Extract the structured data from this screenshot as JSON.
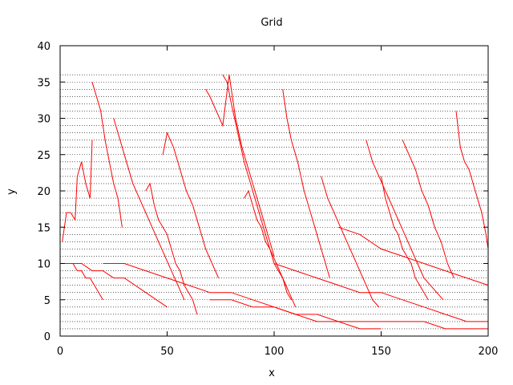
{
  "chart_data": {
    "type": "line",
    "title": "Grid",
    "xlabel": "x",
    "ylabel": "y",
    "xlim": [
      0,
      200
    ],
    "ylim": [
      0,
      40
    ],
    "x_ticks": [
      0,
      50,
      100,
      150,
      200
    ],
    "y_ticks": [
      0,
      5,
      10,
      15,
      20,
      25,
      30,
      35,
      40
    ],
    "grid": "horizontal dotted lines at every integer y from 1 to 36",
    "grid_y": [
      1,
      2,
      3,
      4,
      5,
      6,
      7,
      8,
      9,
      10,
      11,
      12,
      13,
      14,
      15,
      16,
      17,
      18,
      19,
      20,
      21,
      22,
      23,
      24,
      25,
      26,
      27,
      28,
      29,
      30,
      31,
      32,
      33,
      34,
      35,
      36
    ],
    "line_color": "#ff0000",
    "series": [
      {
        "x": [
          0,
          2,
          4,
          6,
          8,
          10,
          12,
          14,
          16,
          18,
          20
        ],
        "y": [
          10,
          10,
          10,
          10,
          9,
          9,
          8,
          8,
          7,
          6,
          5
        ]
      },
      {
        "x": [
          1,
          3,
          5,
          7,
          8,
          10,
          12,
          14,
          15
        ],
        "y": [
          13,
          17,
          17,
          16,
          22,
          24,
          21,
          19,
          27
        ]
      },
      {
        "x": [
          15,
          17,
          19,
          21,
          23,
          25,
          27,
          29
        ],
        "y": [
          35,
          33,
          31,
          27,
          24,
          21,
          19,
          15
        ]
      },
      {
        "x": [
          25,
          28,
          31,
          34,
          37,
          40,
          43,
          46,
          49,
          52,
          55,
          58
        ],
        "y": [
          30,
          27,
          24,
          21,
          19,
          17,
          15,
          13,
          11,
          9,
          7,
          5
        ]
      },
      {
        "x": [
          48,
          50,
          53,
          56,
          59,
          62,
          65,
          68,
          71,
          74
        ],
        "y": [
          25,
          28,
          26,
          23,
          20,
          18,
          15,
          12,
          10,
          8
        ]
      },
      {
        "x": [
          68,
          70,
          73,
          76,
          79,
          82,
          85,
          88,
          91,
          94,
          97,
          100
        ],
        "y": [
          34,
          33,
          31,
          29,
          36,
          30,
          26,
          23,
          20,
          17,
          14,
          11
        ]
      },
      {
        "x": [
          76,
          78,
          80,
          83,
          86,
          89,
          92,
          95,
          98,
          101,
          104,
          107,
          110
        ],
        "y": [
          36,
          35,
          32,
          28,
          24,
          21,
          18,
          15,
          12,
          10,
          8,
          6,
          4
        ]
      },
      {
        "x": [
          104,
          106,
          108,
          111,
          114,
          117,
          120,
          123,
          126
        ],
        "y": [
          34,
          30,
          27,
          24,
          20,
          17,
          14,
          11,
          8
        ]
      },
      {
        "x": [
          122,
          125,
          128,
          131,
          134,
          137,
          140,
          143,
          146,
          149
        ],
        "y": [
          22,
          19,
          17,
          15,
          13,
          11,
          9,
          7,
          5,
          4
        ]
      },
      {
        "x": [
          143,
          146,
          149,
          152,
          155,
          158,
          161,
          164,
          167,
          170,
          173,
          176,
          179
        ],
        "y": [
          27,
          24,
          22,
          20,
          18,
          16,
          14,
          12,
          10,
          8,
          7,
          6,
          5
        ]
      },
      {
        "x": [
          160,
          163,
          166,
          169,
          172,
          175,
          178,
          181,
          184
        ],
        "y": [
          27,
          25,
          23,
          20,
          18,
          15,
          13,
          10,
          8
        ]
      },
      {
        "x": [
          185,
          187,
          189,
          191,
          193,
          195,
          197,
          199,
          200
        ],
        "y": [
          31,
          26,
          24,
          23,
          21,
          19,
          17,
          14,
          12
        ]
      },
      {
        "x": [
          5,
          10,
          15,
          20,
          25,
          30,
          35,
          40,
          45,
          50
        ],
        "y": [
          10,
          10,
          9,
          9,
          8,
          8,
          7,
          6,
          5,
          4
        ]
      },
      {
        "x": [
          20,
          30,
          40,
          50,
          60,
          70,
          80,
          90,
          100,
          110,
          120,
          130,
          140,
          150
        ],
        "y": [
          10,
          10,
          9,
          8,
          7,
          6,
          6,
          5,
          4,
          3,
          2,
          2,
          1,
          1
        ]
      },
      {
        "x": [
          70,
          80,
          90,
          100,
          110,
          120,
          130,
          140,
          150,
          160,
          170,
          180,
          190,
          200
        ],
        "y": [
          5,
          5,
          4,
          4,
          3,
          3,
          2,
          2,
          2,
          2,
          2,
          1,
          1,
          1
        ]
      },
      {
        "x": [
          100,
          110,
          120,
          130,
          140,
          150,
          160,
          170,
          180,
          190,
          200
        ],
        "y": [
          10,
          9,
          8,
          7,
          6,
          6,
          5,
          4,
          3,
          2,
          2
        ]
      },
      {
        "x": [
          130,
          140,
          150,
          160,
          170,
          180,
          190,
          200
        ],
        "y": [
          15,
          14,
          12,
          11,
          10,
          9,
          8,
          7
        ]
      },
      {
        "x": [
          40,
          42,
          44,
          46,
          48,
          50,
          52,
          54,
          56,
          58,
          60,
          62,
          64
        ],
        "y": [
          20,
          21,
          18,
          16,
          15,
          14,
          12,
          10,
          9,
          7,
          6,
          5,
          3
        ]
      },
      {
        "x": [
          86,
          88,
          90,
          92,
          94,
          96,
          98,
          100,
          102,
          104,
          106,
          108
        ],
        "y": [
          19,
          20,
          18,
          16,
          15,
          13,
          12,
          10,
          9,
          8,
          6,
          5
        ]
      },
      {
        "x": [
          150,
          152,
          154,
          156,
          158,
          160,
          162,
          164,
          166,
          168,
          170,
          172
        ],
        "y": [
          22,
          19,
          17,
          15,
          14,
          12,
          11,
          10,
          8,
          7,
          6,
          5
        ]
      }
    ]
  }
}
